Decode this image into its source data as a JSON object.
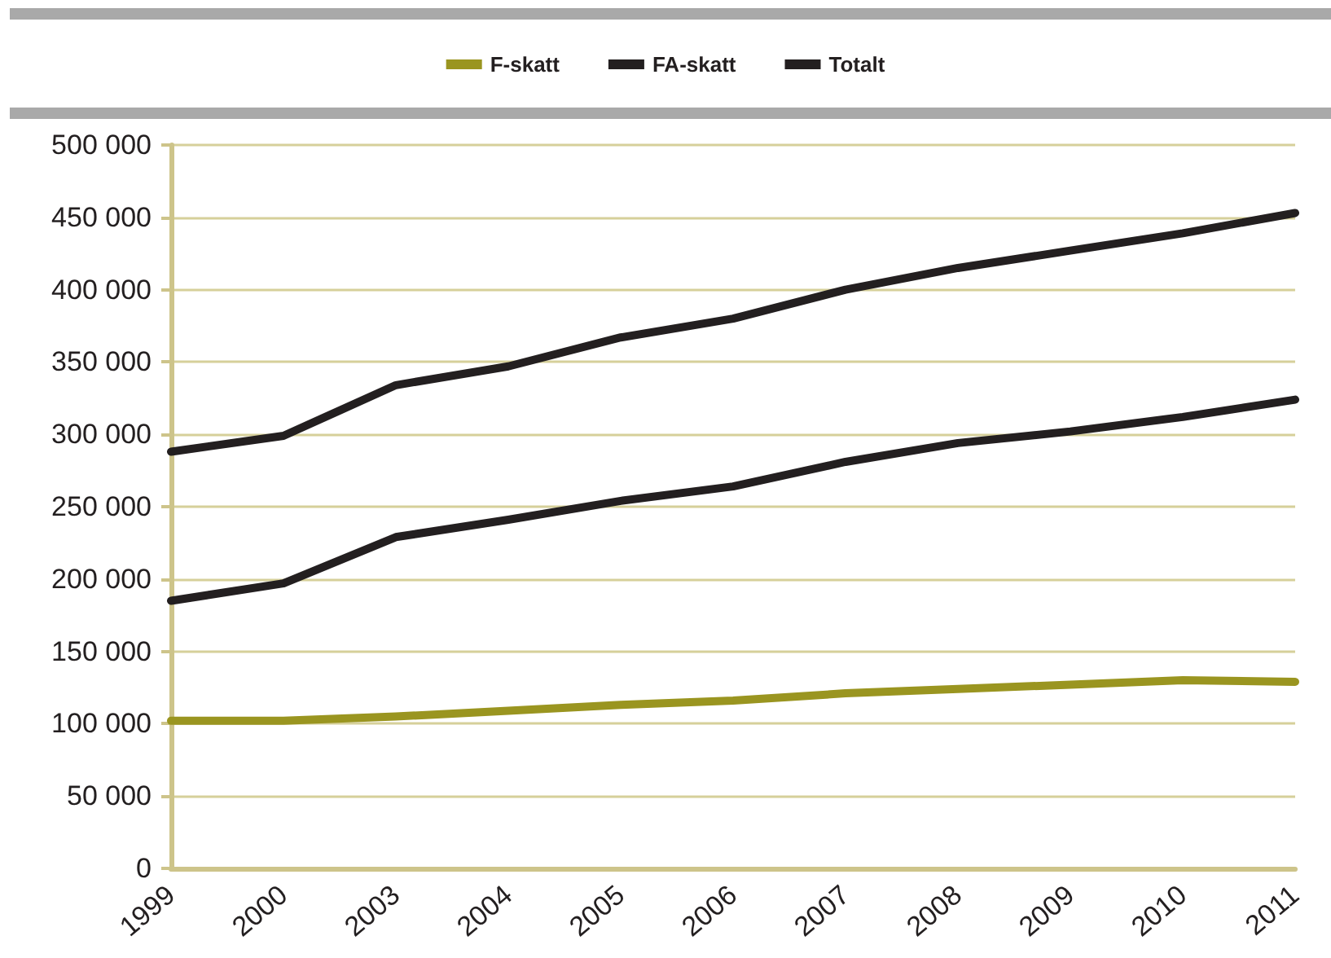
{
  "chart_data": {
    "type": "line",
    "categories": [
      "1999",
      "2000",
      "2003",
      "2004",
      "2005",
      "2006",
      "2007",
      "2008",
      "2009",
      "2010",
      "2011"
    ],
    "series": [
      {
        "name": "F-skatt",
        "color": "#9a9520",
        "values": [
          102000,
          102000,
          105000,
          109000,
          113000,
          116000,
          121000,
          124000,
          127000,
          130000,
          129000
        ]
      },
      {
        "name": "FA-skatt",
        "color": "#231f20",
        "values": [
          185000,
          197000,
          229000,
          241000,
          254000,
          264000,
          281000,
          294000,
          302000,
          312000,
          324000
        ]
      },
      {
        "name": "Totalt",
        "color": "#231f20",
        "values": [
          288000,
          299000,
          334000,
          347000,
          367000,
          380000,
          400000,
          415000,
          427000,
          439000,
          453000
        ]
      }
    ],
    "ylim": [
      0,
      500000
    ],
    "yticks": [
      0,
      50000,
      100000,
      150000,
      200000,
      250000,
      300000,
      350000,
      400000,
      450000,
      500000
    ],
    "grid": "y",
    "legend": "top",
    "marker": "none",
    "line_style": "solid"
  }
}
